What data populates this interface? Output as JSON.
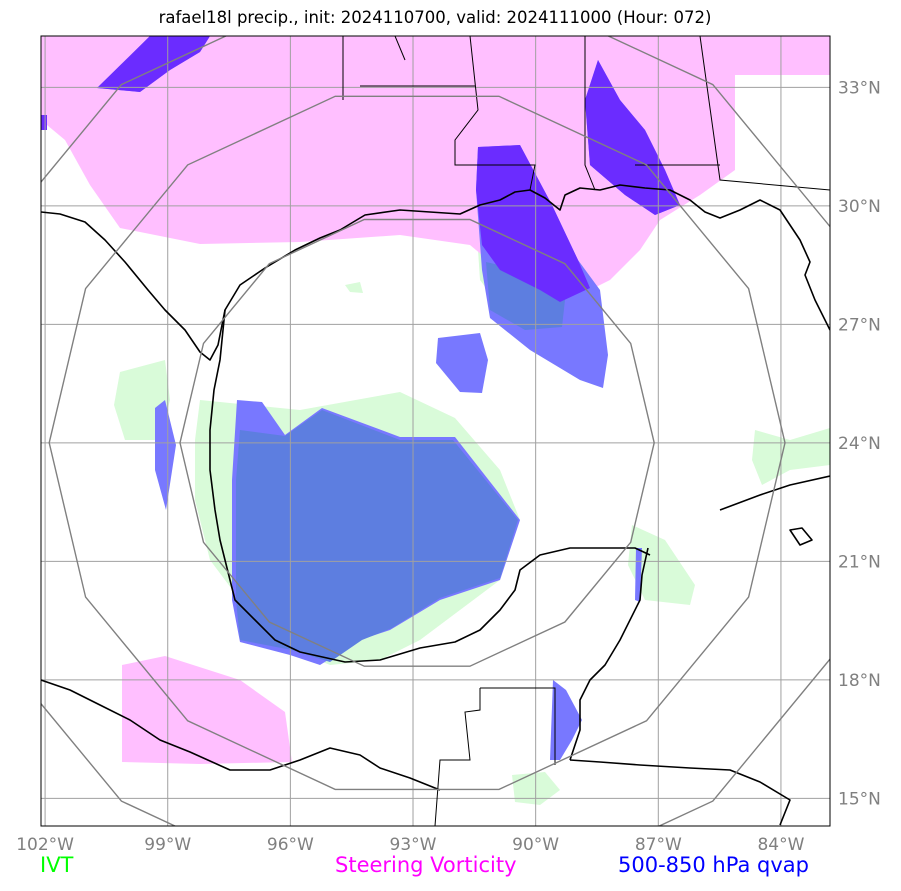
{
  "title": "rafael18l precip., init: 2024110700, valid: 2024111000 (Hour: 072)",
  "colors": {
    "ivt": "#00ff00",
    "steering_vorticity": "#ff00ff",
    "qvap": "#0000ff",
    "ivt_fill": "#d9fbd9",
    "vorticity_fill": "#ffbfff",
    "qvap_fill": "#7878ff",
    "overlap_fill": "#5d7ee0",
    "gridline": "#a0a0a0",
    "range_ring": "#808080",
    "coastline": "#000000"
  },
  "map": {
    "projection": "lat-lon",
    "lon_range": [
      -102.1,
      -82.8
    ],
    "lat_range": [
      14.3,
      34.3
    ],
    "lon_ticks": [
      {
        "value": -102,
        "label": "102°W"
      },
      {
        "value": -99,
        "label": "99°W"
      },
      {
        "value": -96,
        "label": "96°W"
      },
      {
        "value": -93,
        "label": "93°W"
      },
      {
        "value": -90,
        "label": "90°W"
      },
      {
        "value": -87,
        "label": "87°W"
      },
      {
        "value": -84,
        "label": "84°W"
      }
    ],
    "lat_ticks": [
      {
        "value": 15,
        "label": "15°N"
      },
      {
        "value": 18,
        "label": "18°N"
      },
      {
        "value": 21,
        "label": "21°N"
      },
      {
        "value": 24,
        "label": "24°N"
      },
      {
        "value": 27,
        "label": "27°N"
      },
      {
        "value": 30,
        "label": "30°N"
      },
      {
        "value": 33,
        "label": "33°N"
      }
    ],
    "range_ring_center": {
      "lon": -92.9,
      "lat": 24.0
    },
    "range_ring_radii_deg": [
      5.8,
      9.0,
      11.6
    ]
  },
  "legend": {
    "ivt": "IVT",
    "steering_vorticity": "Steering Vorticity",
    "qvap": "500-850 hPa qvap"
  }
}
